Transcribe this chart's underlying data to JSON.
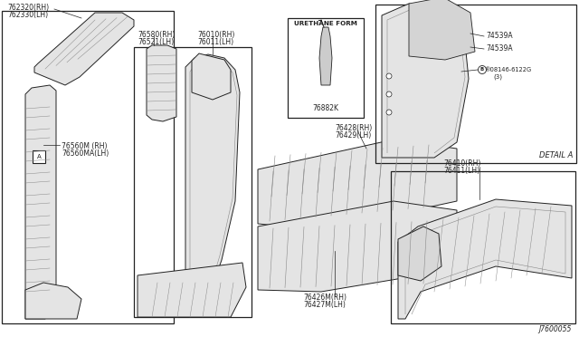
{
  "bg_color": "#ffffff",
  "diagram_code": "J7600055",
  "labels": {
    "top_left_pillar": [
      "762320(RH)",
      "762330(LH)"
    ],
    "b_pillar_upper": [
      "76580(RH)",
      "76521(LH)"
    ],
    "b_pillar_center": [
      "76010(RH)",
      "76011(LH)"
    ],
    "rocker_inner": [
      "76428(RH)",
      "76429(LH)"
    ],
    "rocker_lower": [
      "76426M(RH)",
      "76427M(LH)"
    ],
    "sill": [
      "76410(RH)",
      "76411(LH)"
    ],
    "hinge_pillar": [
      "76560M (RH)",
      "76560MA(LH)"
    ],
    "urethane": [
      "URETHANE FORM",
      "76882K"
    ],
    "detail_labels": [
      "74539A",
      "74539A",
      "®08146-6122G",
      "(3)"
    ],
    "detail_title": "DETAIL A"
  }
}
